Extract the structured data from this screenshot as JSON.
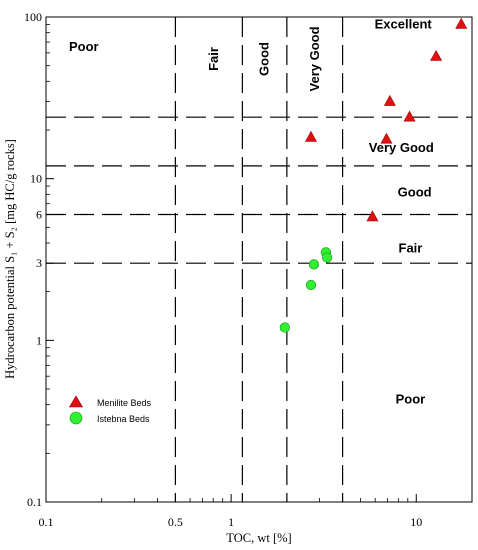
{
  "chart_data": {
    "type": "scatter",
    "title": "",
    "xlabel": "TOC, wt [%]",
    "ylabel": "Hydrocarbon  potential S₁ + S₂ [mg HC/g rocks]",
    "xscale": "log",
    "yscale": "log",
    "xlim": [
      0.1,
      20
    ],
    "ylim": [
      0.1,
      100
    ],
    "x_ticks": [
      {
        "value": 0.1,
        "label": "0.1"
      },
      {
        "value": 0.5,
        "label": "0.5"
      },
      {
        "value": 1,
        "label": "1"
      },
      {
        "value": 10,
        "label": "10"
      }
    ],
    "y_ticks": [
      {
        "value": 0.1,
        "label": "0.1"
      },
      {
        "value": 1,
        "label": "1"
      },
      {
        "value": 3,
        "label": "3"
      },
      {
        "value": 6,
        "label": "6"
      },
      {
        "value": 10,
        "label": "10"
      },
      {
        "value": 100,
        "label": "100"
      }
    ],
    "x_minor_ticks": [
      0.2,
      0.3,
      0.4,
      0.6,
      0.7,
      0.8,
      0.9,
      2,
      3,
      4,
      5,
      6,
      7,
      8,
      9,
      20
    ],
    "y_minor_ticks": [
      0.2,
      0.3,
      0.4,
      0.5,
      0.6,
      0.7,
      0.8,
      0.9,
      2,
      4,
      5,
      7,
      8,
      9,
      20,
      30,
      40,
      50,
      60,
      70,
      80,
      90
    ],
    "boundaries": {
      "vertical_toc": [
        0.5,
        1.15,
        2,
        4
      ],
      "horizontal_s1s2": [
        3,
        6,
        12,
        24
      ]
    },
    "zone_labels": [
      {
        "text": "Poor",
        "x": 0.16,
        "y": 65,
        "rotated": false
      },
      {
        "text": "Fair",
        "x": 0.8,
        "y": 55,
        "rotated": true
      },
      {
        "text": "Good",
        "x": 1.5,
        "y": 55,
        "rotated": true
      },
      {
        "text": "Very Good",
        "x": 2.8,
        "y": 55,
        "rotated": true
      },
      {
        "text": "Excellent",
        "x": 8.5,
        "y": 90,
        "rotated": false
      },
      {
        "text": "Very Good",
        "x": 8.3,
        "y": 15.5,
        "rotated": false
      },
      {
        "text": "Good",
        "x": 9.8,
        "y": 8.2,
        "rotated": false
      },
      {
        "text": "Fair",
        "x": 9.3,
        "y": 3.7,
        "rotated": false
      },
      {
        "text": "Poor",
        "x": 9.3,
        "y": 0.43,
        "rotated": false
      }
    ],
    "legend_position": "bottom-left",
    "series": [
      {
        "name": "Menilite Beds",
        "marker": "triangle",
        "color": "#dd1111",
        "points": [
          {
            "x": 2.7,
            "y": 18
          },
          {
            "x": 5.8,
            "y": 5.8
          },
          {
            "x": 6.9,
            "y": 17.5
          },
          {
            "x": 7.2,
            "y": 30
          },
          {
            "x": 9.2,
            "y": 24
          },
          {
            "x": 12.8,
            "y": 57
          },
          {
            "x": 17.5,
            "y": 90
          }
        ]
      },
      {
        "name": "Istebna Beds",
        "marker": "circle",
        "color": "#33ee33",
        "points": [
          {
            "x": 1.95,
            "y": 1.2
          },
          {
            "x": 2.7,
            "y": 2.2
          },
          {
            "x": 2.8,
            "y": 2.95
          },
          {
            "x": 3.25,
            "y": 3.5
          },
          {
            "x": 3.3,
            "y": 3.25
          }
        ]
      }
    ]
  }
}
